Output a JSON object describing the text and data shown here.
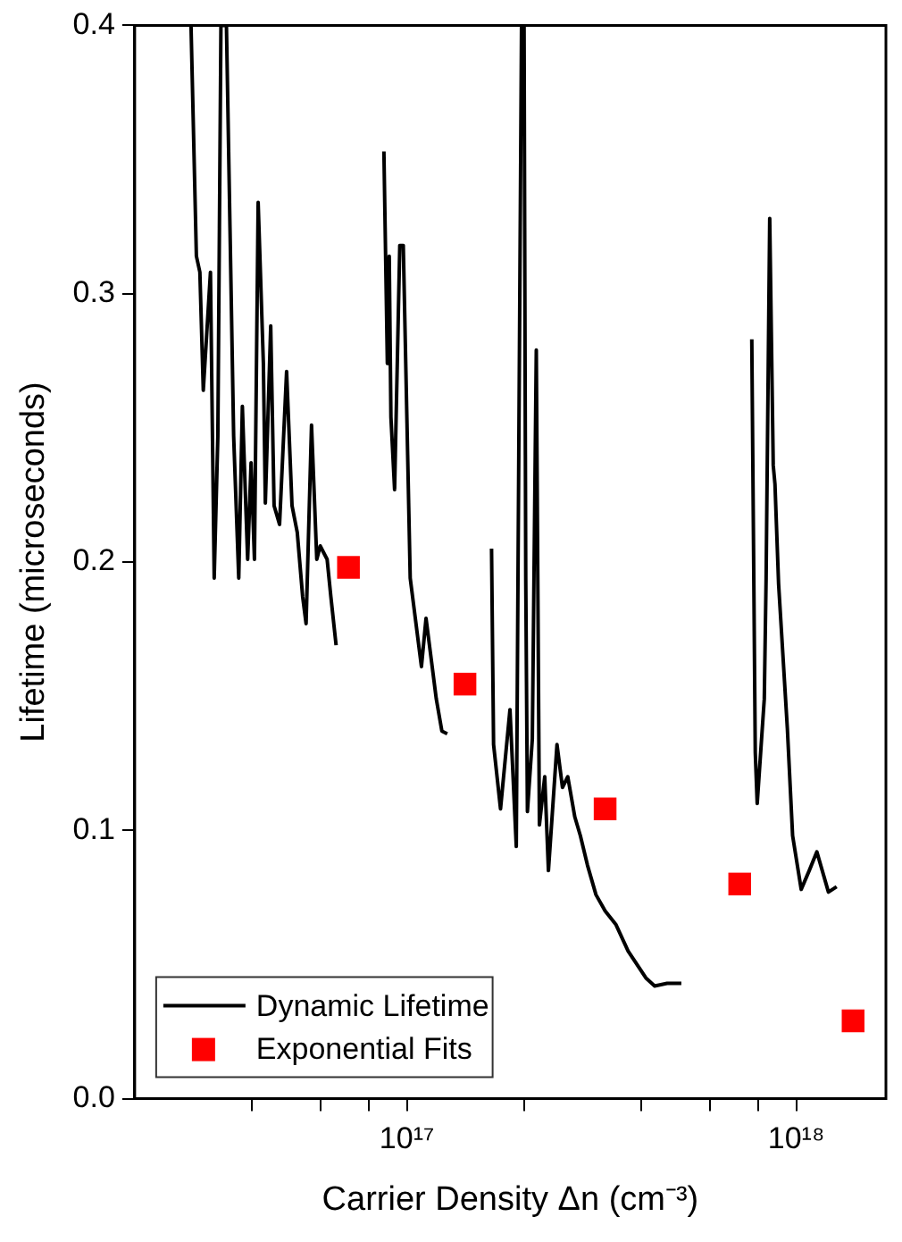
{
  "chart_data": {
    "type": "line",
    "xlabel": "Carrier Density Δn (cm⁻³)",
    "ylabel": "Lifetime (microseconds)",
    "log": "x",
    "xlim": [
      2e+16,
      1.7e+18
    ],
    "xticks": [
      {
        "value": 4e+16,
        "label": null
      },
      {
        "value": 6e+16,
        "label": null
      },
      {
        "value": 8e+16,
        "label": null
      },
      {
        "value": 1e+17,
        "label": "10¹⁷"
      },
      {
        "value": 2e+17,
        "label": null
      },
      {
        "value": 4e+17,
        "label": null
      },
      {
        "value": 6e+17,
        "label": null
      },
      {
        "value": 8e+17,
        "label": null
      },
      {
        "value": 1e+18,
        "label": "10¹⁸"
      }
    ],
    "ylim": [
      0,
      0.4
    ],
    "yticks": [
      {
        "value": 0,
        "label": "0.0"
      },
      0.1,
      0.2,
      0.3,
      0.4
    ],
    "grid": false,
    "legend": "bottom left",
    "series": [
      {
        "name": "Dynamic Lifetime",
        "color": "#000000",
        "marker": "none",
        "line_style": "solid",
        "x": [
          2.79e+16,
          2.88e+16,
          2.94e+16,
          3e+16,
          3.13e+16,
          3.2e+16,
          3.27e+16,
          3.33e+16,
          3.44e+16,
          3.59e+16,
          3.7e+16,
          3.78e+16,
          3.9e+16,
          3.98e+16,
          4.06e+16,
          4.15e+16,
          4.28e+16,
          4.33e+16,
          4.47e+16,
          4.56e+16,
          4.71e+16,
          4.91e+16,
          5.07e+16,
          5.23e+16,
          5.4e+16,
          5.51e+16,
          5.69e+16,
          5.87e+16,
          5.99e+16,
          6.24e+16,
          6.38e+16,
          6.58e+16,
          7.5e+16,
          8.73e+16,
          8.91e+16,
          9.01e+16,
          9.1e+16,
          9.3e+16,
          9.59e+16,
          9.79e+16,
          1e+17,
          1.02e+17,
          1.09e+17,
          1.12e+17,
          1.19e+17,
          1.23e+17,
          1.27e+17,
          1.45e+17,
          1.65e+17,
          1.67e+17,
          1.74e+17,
          1.84e+17,
          1.91e+17,
          1.97e+17,
          2e+17,
          2.02e+17,
          2.04e+17,
          2.1e+17,
          2.15e+17,
          2.19e+17,
          2.26e+17,
          2.31e+17,
          2.43e+17,
          2.51e+17,
          2.59e+17,
          2.7e+17,
          2.79e+17,
          2.91e+17,
          3.06e+17,
          3.23e+17,
          3.44e+17,
          3.7e+17,
          4.11e+17,
          4.33e+17,
          4.66e+17,
          5.07e+17,
          6.5e+17,
          7.69e+17,
          7.85e+17,
          7.94e+17,
          8.28e+17,
          8.37e+17,
          8.55e+17,
          8.73e+17,
          8.82e+17,
          9.01e+17,
          9.49e+17,
          9.79e+17,
          1.03e+18,
          1.08e+18,
          1.13e+18,
          1.21e+18,
          1.27e+18
        ],
        "values": [
          0.4,
          0.314,
          0.308,
          0.264,
          0.308,
          0.194,
          0.247,
          0.4,
          0.4,
          0.247,
          0.194,
          0.258,
          0.201,
          0.237,
          0.201,
          0.334,
          0.274,
          0.222,
          0.288,
          0.221,
          0.214,
          0.271,
          0.221,
          0.211,
          0.187,
          0.177,
          0.251,
          0.201,
          0.206,
          0.201,
          0.187,
          0.169,
          null,
          0.353,
          0.274,
          0.314,
          0.254,
          0.227,
          0.318,
          0.318,
          0.254,
          0.194,
          0.161,
          0.179,
          0.149,
          0.137,
          0.136,
          null,
          0.205,
          0.132,
          0.108,
          0.145,
          0.094,
          0.4,
          0.4,
          0.194,
          0.107,
          0.134,
          0.279,
          0.102,
          0.12,
          0.085,
          0.132,
          0.116,
          0.12,
          0.105,
          0.098,
          0.087,
          0.076,
          0.07,
          0.065,
          0.055,
          0.045,
          0.042,
          0.043,
          0.043,
          null,
          0.283,
          0.129,
          0.11,
          0.149,
          0.194,
          0.328,
          0.236,
          0.229,
          0.192,
          0.138,
          0.098,
          0.078,
          0.085,
          0.092,
          0.077,
          0.079
        ]
      },
      {
        "name": "Exponential Fits",
        "type": "scatter",
        "color": "#ff0000",
        "marker": "square",
        "x": [
          7.08e+16,
          1.41e+17,
          3.23e+17,
          7.16e+17,
          1.4e+18
        ],
        "values": [
          0.198,
          0.1545,
          0.108,
          0.08,
          0.029
        ]
      }
    ]
  }
}
